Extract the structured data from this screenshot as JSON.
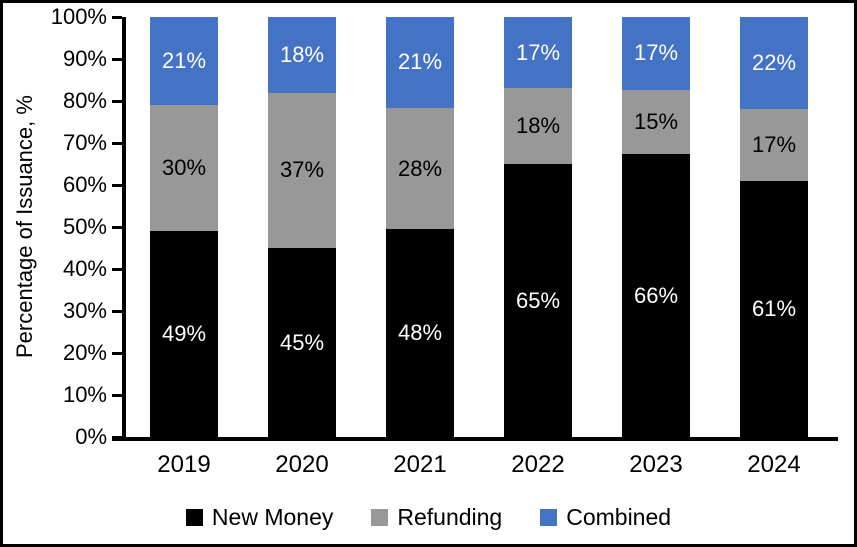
{
  "chart_data": {
    "type": "bar",
    "stacked": true,
    "title": "",
    "xlabel": "",
    "ylabel": "Percentage of Issuance, %",
    "ylim": [
      0,
      100
    ],
    "ytick_step": 10,
    "ytick_suffix": "%",
    "value_suffix": "%",
    "grid": false,
    "legend_position": "bottom",
    "categories": [
      "2019",
      "2020",
      "2021",
      "2022",
      "2023",
      "2024"
    ],
    "series": [
      {
        "name": "New Money",
        "color": "#000000",
        "label_color": "#ffffff",
        "values": [
          49,
          45,
          48,
          65,
          66,
          61
        ]
      },
      {
        "name": "Refunding",
        "color": "#989898",
        "label_color": "#000000",
        "values": [
          30,
          37,
          28,
          18,
          15,
          17
        ]
      },
      {
        "name": "Combined",
        "color": "#4472C4",
        "label_color": "#ffffff",
        "values": [
          21,
          18,
          21,
          17,
          17,
          22
        ]
      }
    ]
  },
  "colors": {
    "axis": "#000000",
    "background": "#ffffff",
    "border": "#000000"
  }
}
